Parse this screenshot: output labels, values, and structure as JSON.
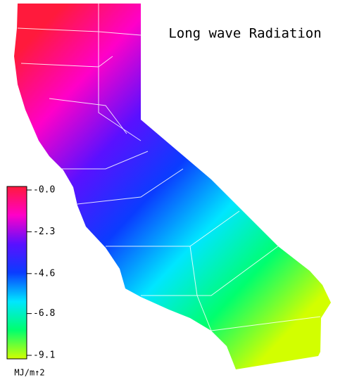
{
  "map": {
    "title": "Long wave Radiation",
    "colorbar": {
      "label": "MJ/m↑2",
      "lim": [
        -9.1,
        0
      ],
      "ticks": [
        {
          "value": 0,
          "label": "-0.0"
        },
        -2.3,
        -4.6,
        -6.8,
        -9.1
      ],
      "colors": [
        "#ff1a3c",
        "#ff00c8",
        "#5a10ff",
        "#0a3cff",
        "#00e6ff",
        "#00ff6e",
        "#d2ff00"
      ]
    }
  }
}
